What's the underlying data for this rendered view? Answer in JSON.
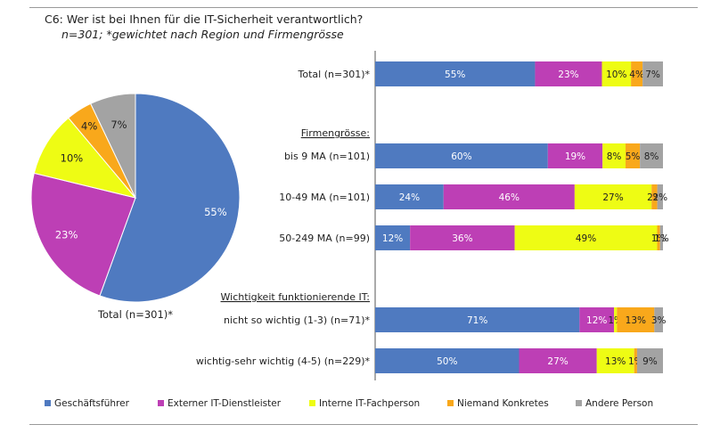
{
  "title": "C6: Wer ist bei Ihnen für die IT-Sicherheit verantwortlich?",
  "subtitle": "n=301; *gewichtet nach Region und Firmengrösse",
  "chart_data": {
    "type": "bar",
    "stacked": true,
    "orientation": "horizontal",
    "pie": {
      "label": "Total (n=301)*",
      "values": [
        55,
        23,
        10,
        4,
        7
      ],
      "labels": [
        "55%",
        "23%",
        "10%",
        "4%",
        "7%"
      ]
    },
    "series": [
      {
        "name": "Geschäftsführer",
        "color": "#4f7ac0"
      },
      {
        "name": "Externer IT-Dienstleister",
        "color": "#bd3fb5"
      },
      {
        "name": "Interne IT-Fachperson",
        "color": "#eefc14"
      },
      {
        "name": "Niemand Konkretes",
        "color": "#f9a81b"
      },
      {
        "name": "Andere Person",
        "color": "#a3a3a3"
      }
    ],
    "rows": [
      {
        "label": "Total (n=301)*",
        "values": [
          55,
          23,
          10,
          4,
          7
        ],
        "labels": [
          "55%",
          "23%",
          "10%",
          "4%",
          "7%"
        ]
      },
      {
        "label": "bis 9 MA (n=101)",
        "values": [
          60,
          19,
          8,
          5,
          8
        ],
        "labels": [
          "60%",
          "19%",
          "8%",
          "5%",
          "8%"
        ]
      },
      {
        "label": "10-49 MA (n=101)",
        "values": [
          24,
          46,
          27,
          2,
          2
        ],
        "labels": [
          "24%",
          "46%",
          "27%",
          "2%",
          "2%"
        ]
      },
      {
        "label": "50-249 MA (n=99)",
        "values": [
          12,
          36,
          49,
          1,
          1
        ],
        "labels": [
          "12%",
          "36%",
          "49%",
          "1%",
          "1%"
        ]
      },
      {
        "label": "nicht so wichtig (1-3) (n=71)*",
        "values": [
          71,
          12,
          1,
          13,
          3
        ],
        "labels": [
          "71%",
          "12%",
          "1%",
          "13%",
          "3%"
        ]
      },
      {
        "label": "wichtig-sehr wichtig (4-5) (n=229)*",
        "values": [
          50,
          27,
          13,
          1,
          9
        ],
        "labels": [
          "50%",
          "27%",
          "13%",
          "1%",
          "9%"
        ]
      }
    ],
    "group_headers": [
      {
        "label": "Firmengrösse:"
      },
      {
        "label": "Wichtigkeit funktionierende IT:"
      }
    ],
    "xlim": [
      0,
      100
    ],
    "legend_position": "bottom"
  }
}
